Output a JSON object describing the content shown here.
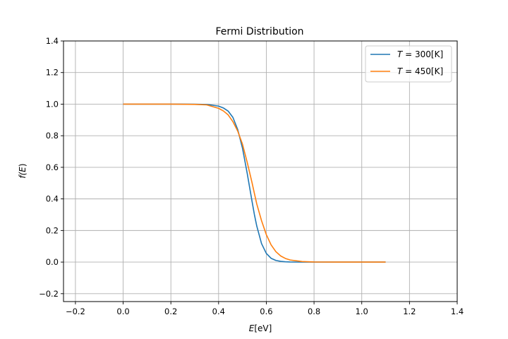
{
  "chart_data": {
    "type": "line",
    "title": "Fermi Distribution",
    "xlabel": {
      "base": "E",
      "suffix": "[eV]"
    },
    "ylabel": {
      "prefix": "f(",
      "var": "E",
      "suffix": ")"
    },
    "xlim": [
      -0.25,
      1.4
    ],
    "ylim": [
      -0.25,
      1.4
    ],
    "xticks": [
      -0.2,
      0.0,
      0.2,
      0.4,
      0.6,
      0.8,
      1.0,
      1.2,
      1.4
    ],
    "xtick_labels": [
      "−0.2",
      "0.0",
      "0.2",
      "0.4",
      "0.6",
      "0.8",
      "1.0",
      "1.2",
      "1.4"
    ],
    "yticks": [
      -0.2,
      0.0,
      0.2,
      0.4,
      0.6,
      0.8,
      1.0,
      1.2,
      1.4
    ],
    "ytick_labels": [
      "−0.2",
      "0.0",
      "0.2",
      "0.4",
      "0.6",
      "0.8",
      "1.0",
      "1.2",
      "1.4"
    ],
    "grid": true,
    "legend_position": "top-right",
    "x": [
      0.0,
      0.1,
      0.2,
      0.3,
      0.35,
      0.4,
      0.42,
      0.44,
      0.46,
      0.48,
      0.5,
      0.52,
      0.54,
      0.55,
      0.56,
      0.58,
      0.6,
      0.62,
      0.64,
      0.66,
      0.68,
      0.7,
      0.75,
      0.8,
      0.9,
      1.0,
      1.1
    ],
    "series": [
      {
        "name": "T = 300[K]",
        "legend": {
          "var": "T",
          "eq": " = ",
          "value": "300[K]"
        },
        "color": "#1f77b4",
        "values": [
          1.0,
          1.0,
          1.0,
          0.9997,
          0.9981,
          0.9875,
          0.976,
          0.956,
          0.916,
          0.84,
          0.722,
          0.561,
          0.386,
          0.301,
          0.228,
          0.117,
          0.055,
          0.024,
          0.0105,
          0.0045,
          0.0019,
          0.0008,
          0.0001,
          0.0,
          0.0,
          0.0,
          0.0
        ]
      },
      {
        "name": "T = 450[K]",
        "legend": {
          "var": "T",
          "eq": " = ",
          "value": "450[K]"
        },
        "color": "#ff7f0e",
        "values": [
          1.0,
          1.0,
          0.9999,
          0.9985,
          0.9953,
          0.9735,
          0.957,
          0.932,
          0.889,
          0.83,
          0.747,
          0.631,
          0.504,
          0.435,
          0.368,
          0.262,
          0.174,
          0.109,
          0.066,
          0.039,
          0.023,
          0.0132,
          0.0033,
          0.0008,
          0.0,
          0.0,
          0.0
        ]
      }
    ]
  }
}
